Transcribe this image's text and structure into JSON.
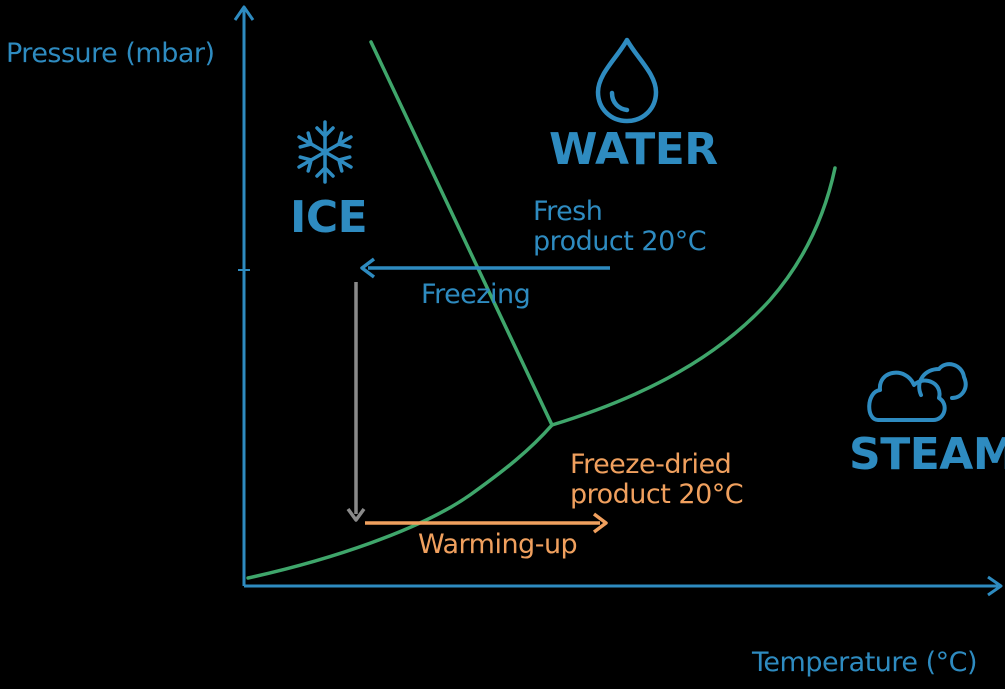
{
  "axes": {
    "y_label": "Pressure (mbar)",
    "x_label": "Temperature (°C)"
  },
  "regions": {
    "ice": {
      "label": "ICE",
      "icon": "snowflake-icon"
    },
    "water": {
      "label": "WATER",
      "icon": "water-drop-icon"
    },
    "steam": {
      "label": "STEAM",
      "icon": "cloud-icon"
    }
  },
  "process": {
    "fresh_product": [
      "Fresh",
      "product 20°C"
    ],
    "freezing": "Freezing",
    "freeze_dried_product": [
      "Freeze-dried",
      "product 20°C"
    ],
    "warming_up": "Warming-up"
  },
  "colors": {
    "background": "#000000",
    "blue": "#2E8BC0",
    "green": "#3FA66B",
    "orange": "#F0A05E",
    "gray": "#8A8A8A"
  }
}
